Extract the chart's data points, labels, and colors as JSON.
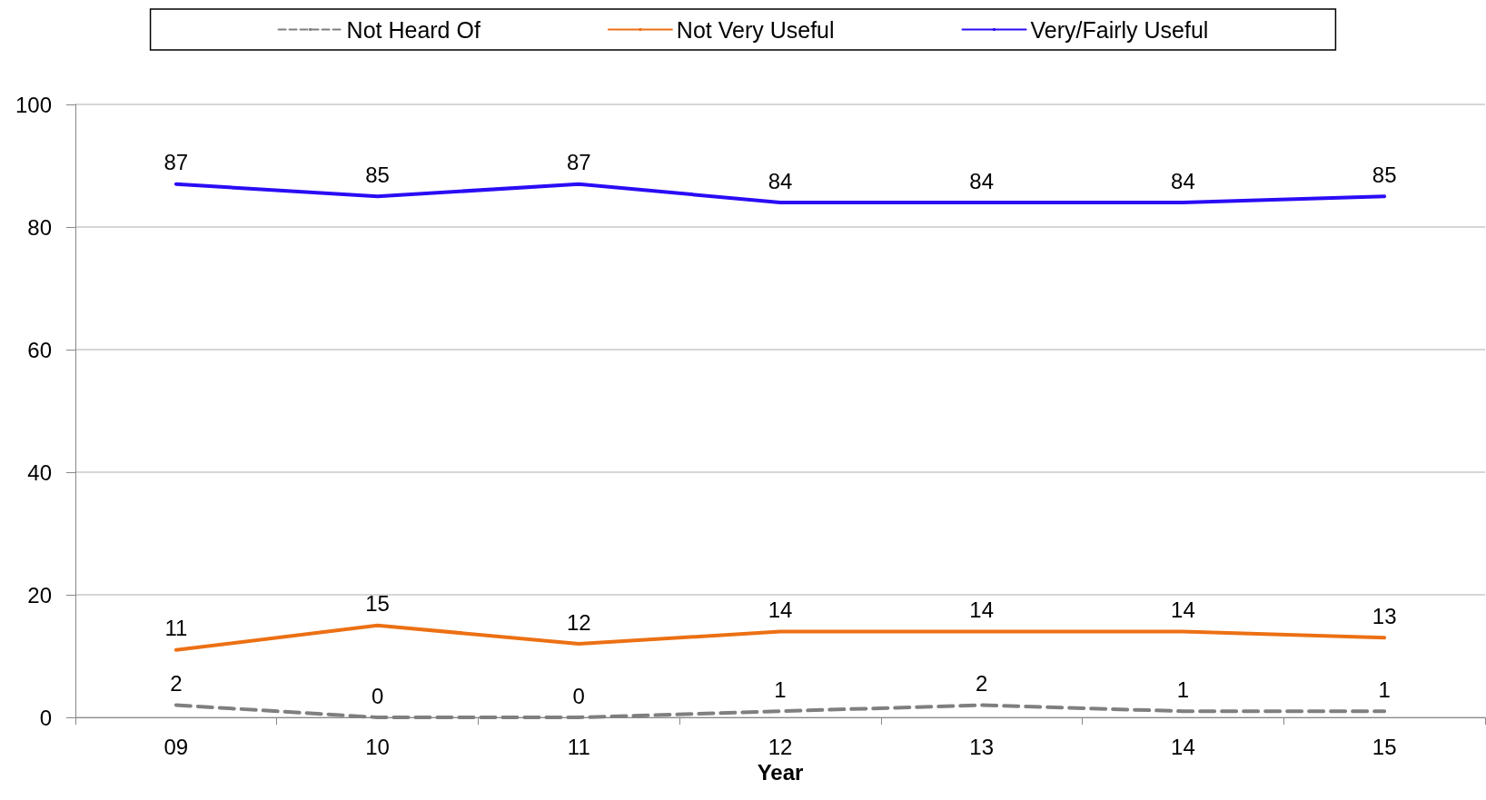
{
  "chart_data": {
    "type": "line",
    "xlabel": "Year",
    "categories": [
      "09",
      "10",
      "11",
      "12",
      "13",
      "14",
      "15"
    ],
    "series": [
      {
        "name": "Not Heard Of",
        "color": "#7f7f7f",
        "line_style": "dashed",
        "values": [
          2,
          0,
          0,
          1,
          2,
          1,
          1
        ]
      },
      {
        "name": "Not Very Useful",
        "color": "#ec7014",
        "line_style": "solid",
        "values": [
          11,
          15,
          12,
          14,
          14,
          14,
          13
        ]
      },
      {
        "name": "Very/Fairly Useful",
        "color": "#2a0cf5",
        "line_style": "solid",
        "values": [
          87,
          85,
          87,
          84,
          84,
          84,
          85
        ]
      }
    ],
    "ylim": [
      0,
      100
    ],
    "yticks": [
      0,
      20,
      40,
      60,
      80,
      100
    ],
    "grid": "y",
    "legend": "top",
    "data_labels": true,
    "marker": "none"
  }
}
